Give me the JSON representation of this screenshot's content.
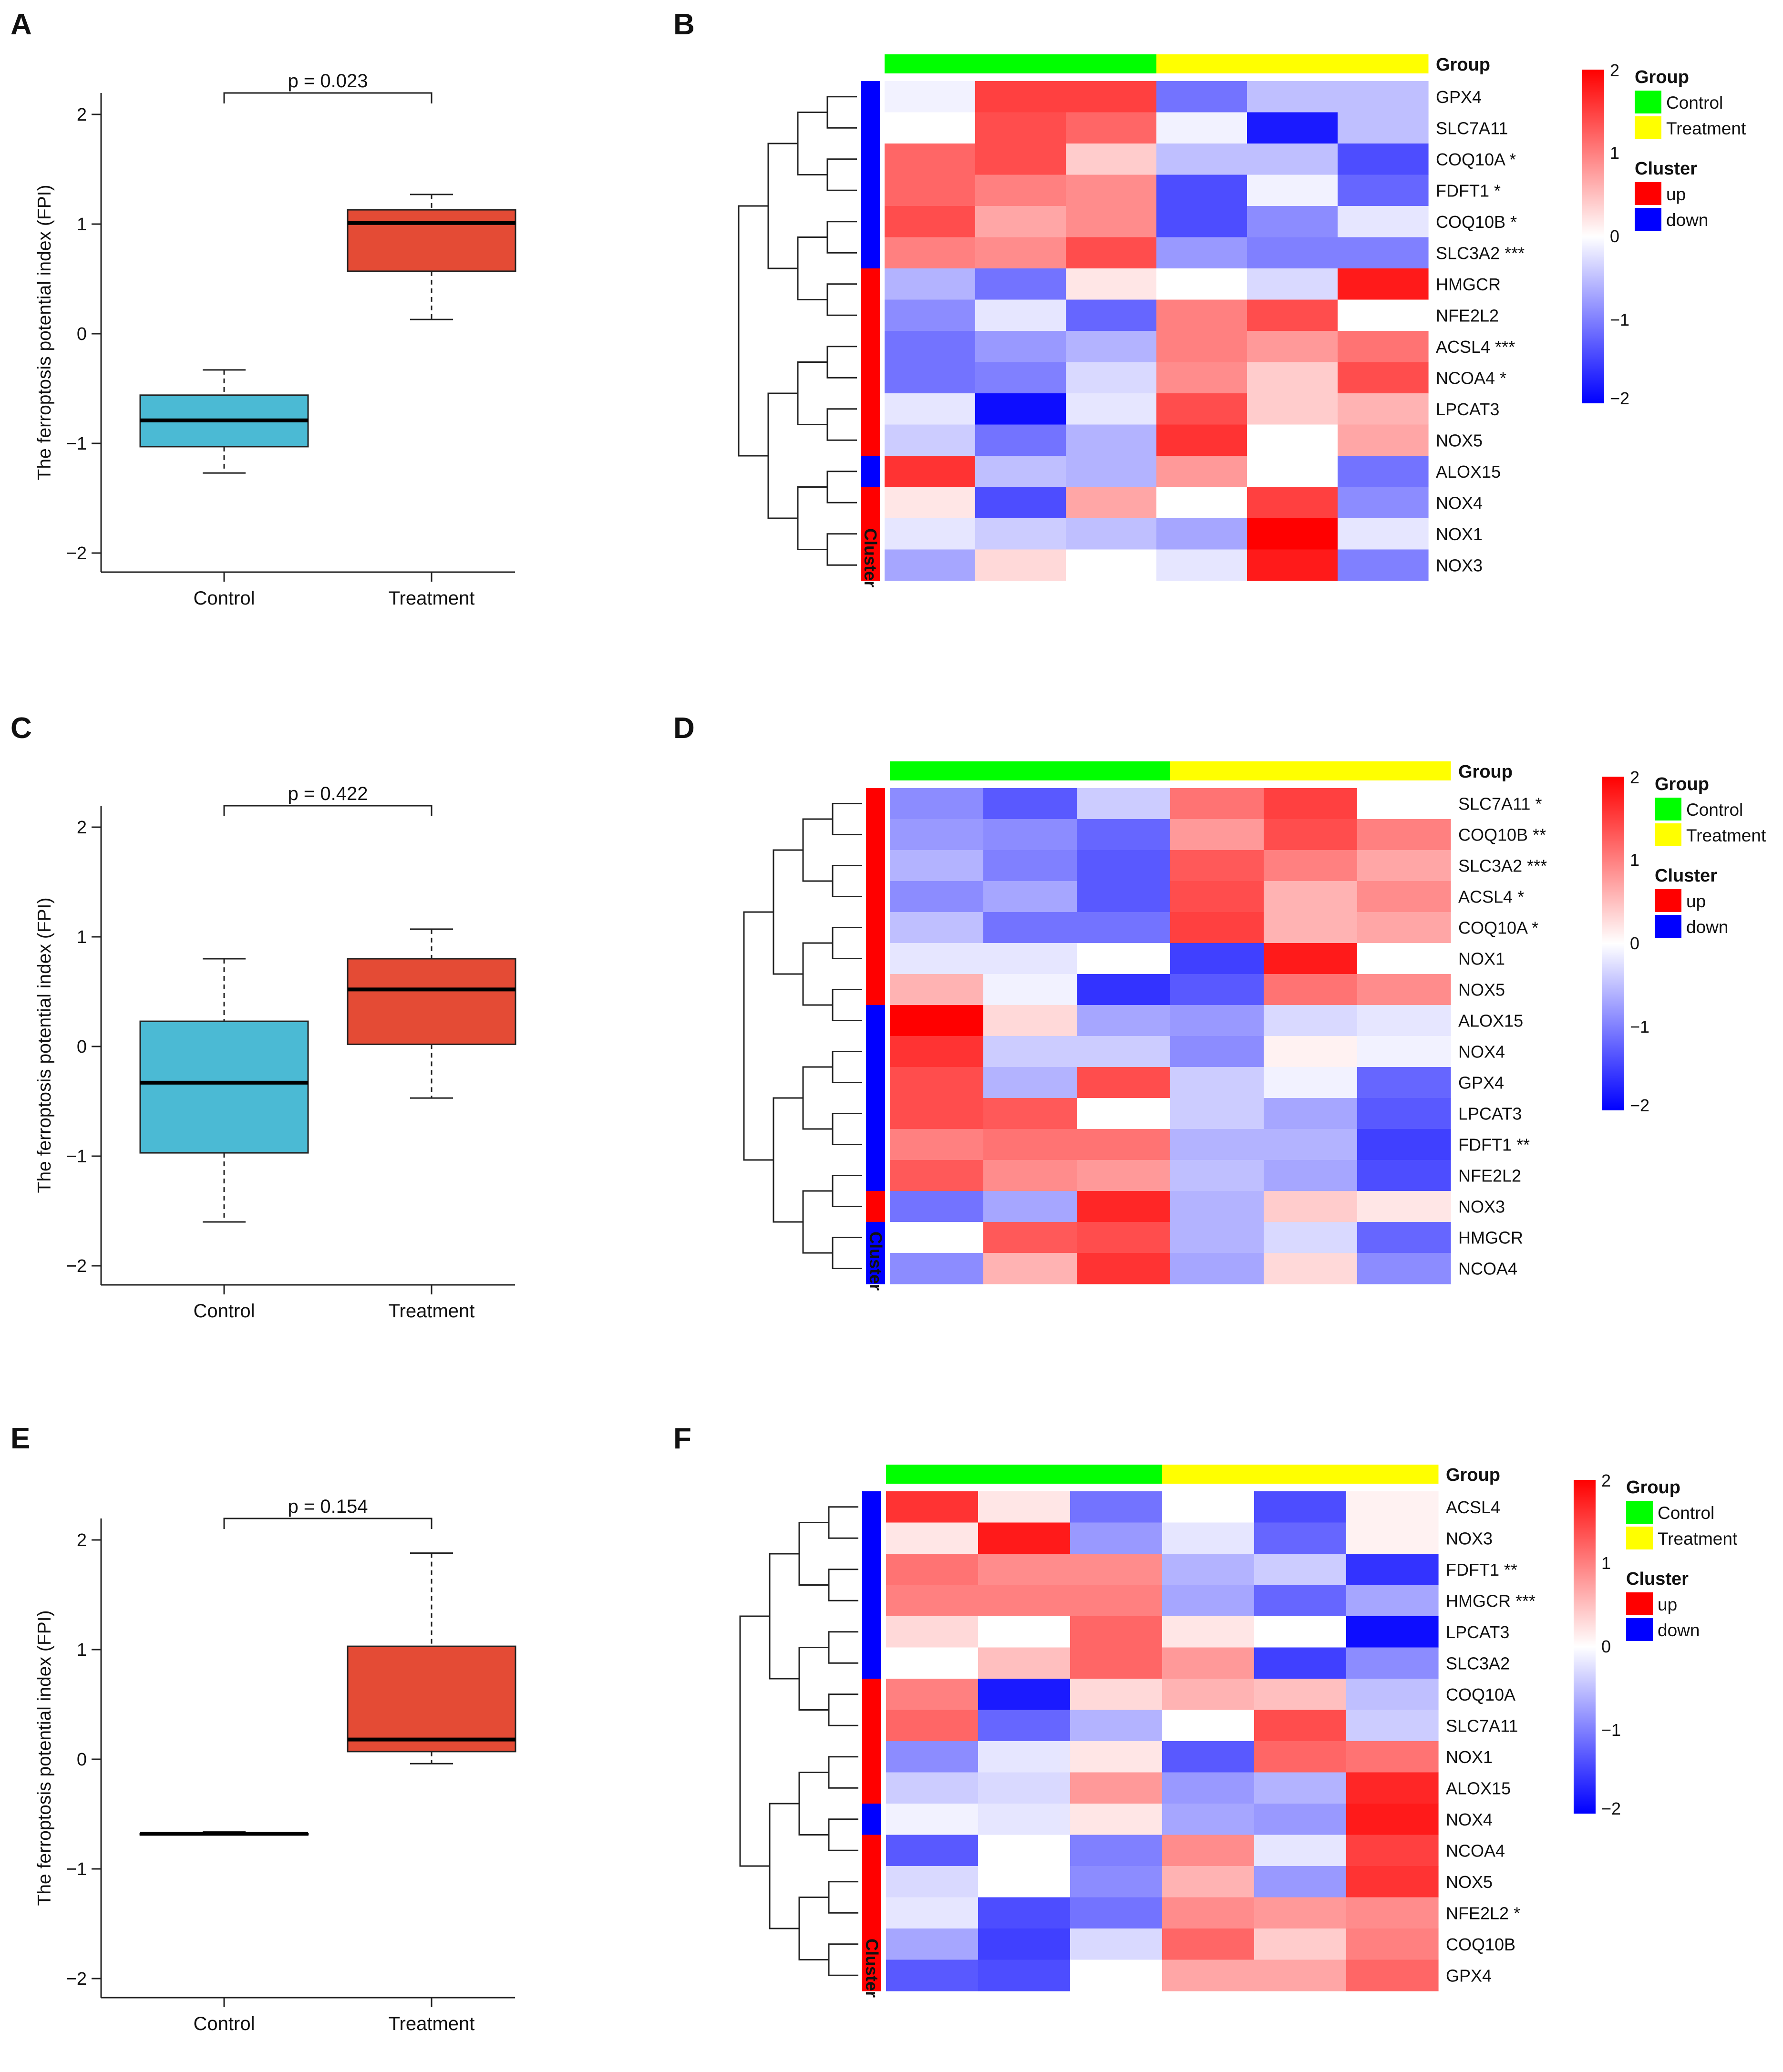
{
  "figure": {
    "colors": {
      "control": "#00FF00",
      "treatment": "#FFFF00",
      "up": "#FF0000",
      "down": "#0000FF",
      "box_control": "#4BBAD4",
      "box_treatment": "#E44B35",
      "heat_low": "#0000FF",
      "heat_mid": "#FFFFFF",
      "heat_high": "#FF0000"
    },
    "legend": {
      "group_title": "Group",
      "control": "Control",
      "treatment": "Treatment",
      "cluster_title": "Cluster",
      "up": "up",
      "down": "down",
      "cluster_axis_label": "Cluster",
      "colorbar_ticks": [
        "2",
        "1",
        "0",
        "−1",
        "−2"
      ]
    }
  },
  "chart_data": [
    {
      "panel": "A",
      "type": "box",
      "ylabel": "The ferroptosis potential index (FPI)",
      "ylim": [
        -2.15,
        2.2
      ],
      "yticks": [
        -2,
        -1,
        0,
        1,
        2
      ],
      "ytick_labels": [
        "−2",
        "−1",
        "0",
        "1",
        "2"
      ],
      "categories": [
        "Control",
        "Treatment"
      ],
      "annotation": "p = 0.023",
      "boxes": [
        {
          "name": "Control",
          "min": -1.27,
          "q1": -1.03,
          "median": -0.79,
          "q3": -0.56,
          "max": -0.33
        },
        {
          "name": "Treatment",
          "min": 0.13,
          "q1": 0.57,
          "median": 1.01,
          "q3": 1.13,
          "max": 1.27
        }
      ]
    },
    {
      "panel": "B",
      "type": "heatmap",
      "group_bar": [
        "Control",
        "Control",
        "Control",
        "Treatment",
        "Treatment",
        "Treatment"
      ],
      "rows": [
        {
          "gene": "GPX4",
          "sig": "",
          "cluster": "down",
          "values": [
            -0.1,
            1.5,
            1.5,
            -1.1,
            -0.5,
            -0.5
          ]
        },
        {
          "gene": "SLC7A11",
          "sig": "",
          "cluster": "down",
          "values": [
            0.0,
            1.4,
            1.2,
            -0.1,
            -1.8,
            -0.5
          ]
        },
        {
          "gene": "COQ10A",
          "sig": "*",
          "cluster": "down",
          "values": [
            1.2,
            1.4,
            0.4,
            -0.5,
            -0.5,
            -1.4
          ]
        },
        {
          "gene": "FDFT1",
          "sig": "*",
          "cluster": "down",
          "values": [
            1.2,
            1.0,
            0.9,
            -1.4,
            -0.1,
            -1.2
          ]
        },
        {
          "gene": "COQ10B",
          "sig": "*",
          "cluster": "down",
          "values": [
            1.4,
            0.7,
            0.9,
            -1.4,
            -0.9,
            -0.2
          ]
        },
        {
          "gene": "SLC3A2",
          "sig": "***",
          "cluster": "down",
          "values": [
            1.0,
            0.9,
            1.4,
            -0.8,
            -1.0,
            -1.0
          ]
        },
        {
          "gene": "HMGCR",
          "sig": "",
          "cluster": "up",
          "values": [
            -0.6,
            -1.1,
            0.2,
            0.0,
            -0.3,
            1.8
          ]
        },
        {
          "gene": "NFE2L2",
          "sig": "",
          "cluster": "up",
          "values": [
            -0.9,
            -0.2,
            -1.2,
            1.0,
            1.4,
            0.0
          ]
        },
        {
          "gene": "ACSL4",
          "sig": "***",
          "cluster": "up",
          "values": [
            -1.1,
            -0.8,
            -0.6,
            1.0,
            0.8,
            1.1
          ]
        },
        {
          "gene": "NCOA4",
          "sig": "*",
          "cluster": "up",
          "values": [
            -1.1,
            -1.0,
            -0.3,
            0.9,
            0.4,
            1.4
          ]
        },
        {
          "gene": "LPCAT3",
          "sig": "",
          "cluster": "up",
          "values": [
            -0.2,
            -1.9,
            -0.2,
            1.4,
            0.4,
            0.6
          ]
        },
        {
          "gene": "NOX5",
          "sig": "",
          "cluster": "up",
          "values": [
            -0.4,
            -1.1,
            -0.6,
            1.6,
            0.0,
            0.7
          ]
        },
        {
          "gene": "ALOX15",
          "sig": "",
          "cluster": "down",
          "values": [
            1.6,
            -0.5,
            -0.6,
            0.8,
            0.0,
            -1.1
          ]
        },
        {
          "gene": "NOX4",
          "sig": "",
          "cluster": "up",
          "values": [
            0.2,
            -1.4,
            0.7,
            0.0,
            1.5,
            -0.9
          ]
        },
        {
          "gene": "NOX1",
          "sig": "",
          "cluster": "up",
          "values": [
            -0.2,
            -0.4,
            -0.5,
            -0.7,
            2.0,
            -0.2
          ]
        },
        {
          "gene": "NOX3",
          "sig": "",
          "cluster": "up",
          "values": [
            -0.7,
            0.3,
            0.0,
            -0.2,
            1.8,
            -1.0
          ]
        }
      ]
    },
    {
      "panel": "C",
      "type": "box",
      "ylabel": "The ferroptosis potential index (FPI)",
      "ylim": [
        -2.15,
        2.2
      ],
      "yticks": [
        -2,
        -1,
        0,
        1,
        2
      ],
      "ytick_labels": [
        "−2",
        "−1",
        "0",
        "1",
        "2"
      ],
      "categories": [
        "Control",
        "Treatment"
      ],
      "annotation": "p = 0.422",
      "boxes": [
        {
          "name": "Control",
          "min": -1.6,
          "q1": -0.97,
          "median": -0.33,
          "q3": 0.23,
          "max": 0.8
        },
        {
          "name": "Treatment",
          "min": -0.47,
          "q1": 0.02,
          "median": 0.52,
          "q3": 0.8,
          "max": 1.07
        }
      ]
    },
    {
      "panel": "D",
      "type": "heatmap",
      "group_bar": [
        "Control",
        "Control",
        "Control",
        "Treatment",
        "Treatment",
        "Treatment"
      ],
      "rows": [
        {
          "gene": "SLC7A11",
          "sig": "*",
          "cluster": "up",
          "values": [
            -0.9,
            -1.3,
            -0.4,
            1.1,
            1.5,
            0.0
          ]
        },
        {
          "gene": "COQ10B",
          "sig": "**",
          "cluster": "up",
          "values": [
            -0.8,
            -0.9,
            -1.2,
            0.8,
            1.4,
            1.0
          ]
        },
        {
          "gene": "SLC3A2",
          "sig": "***",
          "cluster": "up",
          "values": [
            -0.6,
            -1.0,
            -1.3,
            1.3,
            1.0,
            0.7
          ]
        },
        {
          "gene": "ACSL4",
          "sig": "*",
          "cluster": "up",
          "values": [
            -0.9,
            -0.7,
            -1.3,
            1.4,
            0.6,
            0.9
          ]
        },
        {
          "gene": "COQ10A",
          "sig": "*",
          "cluster": "up",
          "values": [
            -0.5,
            -1.1,
            -1.1,
            1.5,
            0.6,
            0.7
          ]
        },
        {
          "gene": "NOX1",
          "sig": "",
          "cluster": "up",
          "values": [
            -0.2,
            -0.2,
            0.0,
            -1.5,
            1.8,
            0.0
          ]
        },
        {
          "gene": "NOX5",
          "sig": "",
          "cluster": "up",
          "values": [
            0.6,
            -0.1,
            -1.6,
            -1.3,
            1.1,
            0.9
          ]
        },
        {
          "gene": "ALOX15",
          "sig": "",
          "cluster": "down",
          "values": [
            2.0,
            0.3,
            -0.7,
            -0.8,
            -0.3,
            -0.2
          ]
        },
        {
          "gene": "NOX4",
          "sig": "",
          "cluster": "down",
          "values": [
            1.6,
            -0.4,
            -0.4,
            -0.9,
            0.1,
            -0.1
          ]
        },
        {
          "gene": "GPX4",
          "sig": "",
          "cluster": "down",
          "values": [
            1.4,
            -0.6,
            1.4,
            -0.4,
            -0.1,
            -1.2
          ]
        },
        {
          "gene": "LPCAT3",
          "sig": "",
          "cluster": "down",
          "values": [
            1.4,
            1.3,
            0.0,
            -0.4,
            -0.7,
            -1.3
          ]
        },
        {
          "gene": "FDFT1",
          "sig": "**",
          "cluster": "down",
          "values": [
            1.0,
            1.1,
            1.1,
            -0.6,
            -0.6,
            -1.5
          ]
        },
        {
          "gene": "NFE2L2",
          "sig": "",
          "cluster": "down",
          "values": [
            1.3,
            0.9,
            0.8,
            -0.5,
            -0.7,
            -1.4
          ]
        },
        {
          "gene": "NOX3",
          "sig": "",
          "cluster": "up",
          "values": [
            -1.1,
            -0.7,
            1.7,
            -0.6,
            0.4,
            0.2
          ]
        },
        {
          "gene": "HMGCR",
          "sig": "",
          "cluster": "down",
          "values": [
            0.0,
            1.3,
            1.4,
            -0.6,
            -0.3,
            -1.2
          ]
        },
        {
          "gene": "NCOA4",
          "sig": "",
          "cluster": "down",
          "values": [
            -0.9,
            0.6,
            1.6,
            -0.7,
            0.3,
            -0.9
          ]
        }
      ]
    },
    {
      "panel": "E",
      "type": "box",
      "ylabel": "The ferroptosis potential index (FPI)",
      "ylim": [
        -2.15,
        2.2
      ],
      "yticks": [
        -2,
        -1,
        0,
        1,
        2
      ],
      "ytick_labels": [
        "−2",
        "−1",
        "0",
        "1",
        "2"
      ],
      "categories": [
        "Control",
        "Treatment"
      ],
      "annotation": "p = 0.154",
      "boxes": [
        {
          "name": "Control",
          "min": -0.68,
          "q1": -0.68,
          "median": -0.68,
          "q3": -0.68,
          "max": -0.66
        },
        {
          "name": "Treatment",
          "min": -0.04,
          "q1": 0.07,
          "median": 0.18,
          "q3": 1.03,
          "max": 1.88
        }
      ]
    },
    {
      "panel": "F",
      "type": "heatmap",
      "group_bar": [
        "Control",
        "Control",
        "Control",
        "Treatment",
        "Treatment",
        "Treatment"
      ],
      "rows": [
        {
          "gene": "ACSL4",
          "sig": "",
          "cluster": "down",
          "values": [
            1.6,
            0.2,
            -1.1,
            0.0,
            -1.4,
            0.1
          ]
        },
        {
          "gene": "NOX3",
          "sig": "",
          "cluster": "down",
          "values": [
            0.2,
            1.8,
            -0.8,
            -0.2,
            -1.2,
            0.1
          ]
        },
        {
          "gene": "FDFT1",
          "sig": "**",
          "cluster": "down",
          "values": [
            1.1,
            0.9,
            0.9,
            -0.6,
            -0.4,
            -1.6
          ]
        },
        {
          "gene": "HMGCR",
          "sig": "***",
          "cluster": "down",
          "values": [
            1.0,
            1.0,
            1.0,
            -0.7,
            -1.2,
            -0.7
          ]
        },
        {
          "gene": "LPCAT3",
          "sig": "",
          "cluster": "down",
          "values": [
            0.3,
            0.0,
            1.2,
            0.2,
            0.0,
            -1.9
          ]
        },
        {
          "gene": "SLC3A2",
          "sig": "",
          "cluster": "down",
          "values": [
            0.0,
            0.5,
            1.2,
            0.8,
            -1.5,
            -0.9
          ]
        },
        {
          "gene": "COQ10A",
          "sig": "",
          "cluster": "up",
          "values": [
            1.0,
            -1.8,
            0.3,
            0.6,
            0.5,
            -0.5
          ]
        },
        {
          "gene": "SLC7A11",
          "sig": "",
          "cluster": "up",
          "values": [
            1.2,
            -1.2,
            -0.6,
            0.0,
            1.4,
            -0.4
          ]
        },
        {
          "gene": "NOX1",
          "sig": "",
          "cluster": "up",
          "values": [
            -0.9,
            -0.2,
            0.2,
            -1.3,
            1.2,
            1.1
          ]
        },
        {
          "gene": "ALOX15",
          "sig": "",
          "cluster": "up",
          "values": [
            -0.4,
            -0.3,
            0.8,
            -0.8,
            -0.6,
            1.7
          ]
        },
        {
          "gene": "NOX4",
          "sig": "",
          "cluster": "down",
          "values": [
            -0.1,
            -0.2,
            0.2,
            -0.7,
            -0.8,
            1.8
          ]
        },
        {
          "gene": "NCOA4",
          "sig": "",
          "cluster": "up",
          "values": [
            -1.3,
            0.0,
            -1.0,
            0.9,
            -0.2,
            1.5
          ]
        },
        {
          "gene": "NOX5",
          "sig": "",
          "cluster": "up",
          "values": [
            -0.3,
            0.0,
            -0.9,
            0.6,
            -0.8,
            1.6
          ]
        },
        {
          "gene": "NFE2L2",
          "sig": "*",
          "cluster": "up",
          "values": [
            -0.2,
            -1.4,
            -1.1,
            0.9,
            0.8,
            0.9
          ]
        },
        {
          "gene": "COQ10B",
          "sig": "",
          "cluster": "up",
          "values": [
            -0.7,
            -1.5,
            -0.3,
            1.2,
            0.4,
            1.0
          ]
        },
        {
          "gene": "GPX4",
          "sig": "",
          "cluster": "up",
          "values": [
            -1.3,
            -1.4,
            0.0,
            0.7,
            0.7,
            1.2
          ]
        }
      ]
    }
  ]
}
